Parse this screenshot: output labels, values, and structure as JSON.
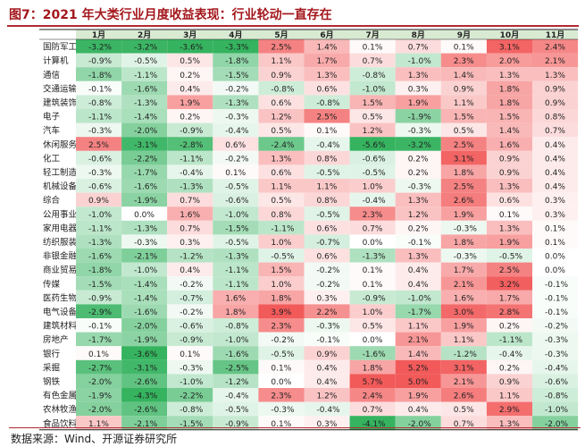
{
  "title": "图7：2021 年大类行业月度收益表现：行业轮动一直存在",
  "source": "数据来源：Wind、开源证券研究所",
  "colors": {
    "positive": "#f25a5a",
    "negative": "#35b35f",
    "neutral": "#ffffff",
    "header_bg": "#d9ead3",
    "title": "#a3171c",
    "rule": "#b02a30"
  },
  "chart_data": {
    "type": "heatmap",
    "title": "图7：2021 年大类行业月度收益表现：行业轮动一直存在",
    "value_unit": "%",
    "columns": [
      "1月",
      "2月",
      "3月",
      "4月",
      "5月",
      "6月",
      "7月",
      "8月",
      "9月",
      "10月",
      "11月"
    ],
    "rows": [
      {
        "name": "国防军工",
        "values": [
          -3.2,
          -3.2,
          -3.6,
          -3.3,
          2.5,
          1.4,
          0.1,
          0.7,
          0.1,
          3.1,
          2.4
        ]
      },
      {
        "name": "计算机",
        "values": [
          -0.9,
          -0.5,
          0.5,
          -1.8,
          1.1,
          1.7,
          0.7,
          -1.0,
          2.3,
          2.0,
          2.1
        ]
      },
      {
        "name": "通信",
        "values": [
          -1.8,
          -1.1,
          0.2,
          -1.5,
          0.9,
          1.3,
          -0.8,
          1.3,
          1.4,
          1.3,
          1.3
        ]
      },
      {
        "name": "交通运输",
        "values": [
          -0.1,
          -1.6,
          0.4,
          -0.2,
          -0.8,
          0.6,
          -1.0,
          0.3,
          0.9,
          1.8,
          0.9
        ]
      },
      {
        "name": "建筑装饰",
        "values": [
          -0.8,
          -1.3,
          1.9,
          -1.3,
          0.6,
          -0.8,
          1.5,
          1.9,
          1.1,
          1.8,
          0.9
        ]
      },
      {
        "name": "电子",
        "values": [
          -1.1,
          -1.4,
          0.2,
          -0.3,
          1.2,
          2.5,
          0.5,
          -1.9,
          1.5,
          1.5,
          0.8
        ]
      },
      {
        "name": "汽车",
        "values": [
          -0.3,
          -2.0,
          -0.9,
          -0.4,
          0.5,
          0.1,
          1.2,
          -0.3,
          0.5,
          1.4,
          0.7
        ]
      },
      {
        "name": "休闲服务",
        "values": [
          2.5,
          -3.1,
          -2.8,
          0.6,
          -2.4,
          -0.4,
          -5.6,
          -3.2,
          2.5,
          1.6,
          0.4
        ]
      },
      {
        "name": "化工",
        "values": [
          -0.6,
          -2.2,
          -1.1,
          -0.2,
          1.3,
          0.8,
          -0.6,
          0.2,
          3.1,
          0.9,
          0.4
        ]
      },
      {
        "name": "轻工制造",
        "values": [
          -0.3,
          -1.7,
          -0.4,
          0.1,
          0.6,
          -0.5,
          -0.5,
          0.2,
          1.8,
          0.9,
          0.4
        ]
      },
      {
        "name": "机械设备",
        "values": [
          -0.6,
          -1.6,
          -1.3,
          -0.5,
          1.1,
          1.1,
          1.0,
          -0.3,
          2.5,
          1.3,
          0.4
        ]
      },
      {
        "name": "综合",
        "values": [
          0.9,
          -1.9,
          0.7,
          -0.6,
          0.5,
          0.8,
          -0.4,
          1.3,
          2.6,
          0.6,
          0.3
        ]
      },
      {
        "name": "公用事业",
        "values": [
          -1.0,
          0.0,
          1.6,
          -1.0,
          0.8,
          -0.5,
          2.3,
          1.2,
          1.9,
          0.1,
          0.3
        ]
      },
      {
        "name": "家用电器",
        "values": [
          -1.1,
          -1.3,
          0.7,
          -1.5,
          -1.1,
          0.6,
          0.7,
          0.2,
          -0.3,
          1.3,
          0.1
        ]
      },
      {
        "name": "纺织服装",
        "values": [
          -1.3,
          -0.3,
          0.3,
          -0.5,
          1.0,
          -0.7,
          0.0,
          -0.1,
          1.8,
          1.9,
          0.1
        ]
      },
      {
        "name": "非银金融",
        "values": [
          -1.6,
          -2.1,
          -1.2,
          -1.3,
          -0.5,
          0.6,
          -1.3,
          1.3,
          -0.3,
          -0.5,
          0.0
        ]
      },
      {
        "name": "商业贸易",
        "values": [
          -1.8,
          -1.0,
          0.4,
          -1.1,
          1.5,
          -0.2,
          0.1,
          0.4,
          1.7,
          2.5,
          0.0
        ]
      },
      {
        "name": "传媒",
        "values": [
          -1.5,
          -1.4,
          -0.2,
          -1.1,
          1.0,
          -0.2,
          0.1,
          0.4,
          2.1,
          3.2,
          -0.1
        ]
      },
      {
        "name": "医药生物",
        "values": [
          -0.9,
          -1.4,
          -0.7,
          1.6,
          1.8,
          0.3,
          -0.9,
          -1.0,
          1.6,
          1.7,
          -0.1
        ]
      },
      {
        "name": "电气设备",
        "values": [
          -2.9,
          -1.6,
          -0.2,
          1.8,
          3.9,
          2.2,
          1.0,
          -1.7,
          3.0,
          2.8,
          -0.1
        ]
      },
      {
        "name": "建筑材料",
        "values": [
          -0.1,
          -2.0,
          -0.6,
          -0.8,
          2.3,
          -0.3,
          0.5,
          1.1,
          1.9,
          0.2,
          -0.2
        ]
      },
      {
        "name": "房地产",
        "values": [
          -1.7,
          -1.9,
          -0.9,
          -1.0,
          -0.2,
          -0.1,
          0.0,
          2.1,
          1.1,
          -1.1,
          -0.3
        ]
      },
      {
        "name": "银行",
        "values": [
          0.1,
          -3.6,
          0.1,
          -1.6,
          -0.5,
          0.9,
          -1.6,
          1.4,
          -1.2,
          -0.4,
          -0.3
        ]
      },
      {
        "name": "采掘",
        "values": [
          -2.7,
          -3.1,
          -0.3,
          -2.5,
          0.1,
          0.4,
          1.8,
          5.2,
          3.1,
          0.2,
          -0.4
        ]
      },
      {
        "name": "钢铁",
        "values": [
          -2.0,
          -2.6,
          -1.0,
          -1.2,
          0.0,
          0.4,
          5.7,
          5.0,
          2.1,
          0.9,
          -0.6
        ]
      },
      {
        "name": "有色金属",
        "values": [
          -1.9,
          -4.3,
          -2.2,
          -0.4,
          2.3,
          1.2,
          2.4,
          1.9,
          2.6,
          1.1,
          -0.8
        ]
      },
      {
        "name": "农林牧渔",
        "values": [
          -2.0,
          -2.6,
          -0.8,
          -0.5,
          -0.3,
          -0.4,
          0.7,
          0.4,
          0.5,
          2.9,
          -1.0
        ]
      },
      {
        "name": "食品饮料",
        "values": [
          1.1,
          -2.1,
          -1.5,
          -0.9,
          0.1,
          0.3,
          -4.1,
          -2.0,
          0.7,
          1.3,
          -2.0
        ]
      }
    ]
  }
}
